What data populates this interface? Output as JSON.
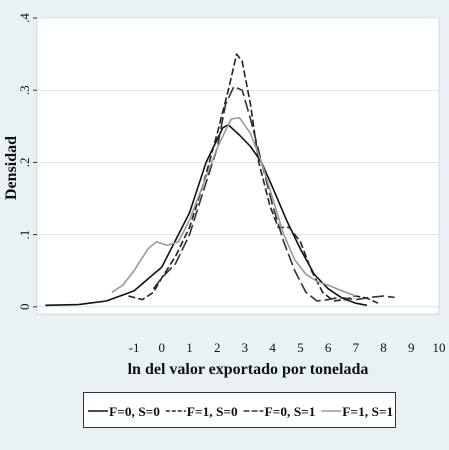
{
  "chart_data": {
    "type": "line",
    "xlabel": "ln del valor exportado por tonelada",
    "ylabel": "Densidad",
    "xlim": [
      -4.5,
      10
    ],
    "ylim": [
      -0.01,
      0.4
    ],
    "x_ticks": [
      "-1",
      "0",
      "1",
      "2",
      "3",
      "4",
      "5",
      "6",
      "7",
      "8",
      "9",
      "10"
    ],
    "y_ticks": [
      "0",
      ".1",
      ".2",
      ".3",
      ".4"
    ],
    "grid": true,
    "legend_position": "bottom",
    "series": [
      {
        "name": "F=0, S=0",
        "style": "solid",
        "color": "#111111",
        "points": [
          [
            -4.2,
            0.002
          ],
          [
            -3,
            0.003
          ],
          [
            -2,
            0.008
          ],
          [
            -1,
            0.022
          ],
          [
            0,
            0.055
          ],
          [
            1,
            0.13
          ],
          [
            1.6,
            0.2
          ],
          [
            2.2,
            0.248
          ],
          [
            2.4,
            0.252
          ],
          [
            2.8,
            0.238
          ],
          [
            3.2,
            0.222
          ],
          [
            3.6,
            0.2
          ],
          [
            4,
            0.165
          ],
          [
            4.5,
            0.12
          ],
          [
            5,
            0.08
          ],
          [
            5.5,
            0.045
          ],
          [
            6,
            0.025
          ],
          [
            6.5,
            0.012
          ],
          [
            7,
            0.005
          ],
          [
            7.4,
            0.002
          ]
        ]
      },
      {
        "name": "F=1, S=0",
        "style": "dashed",
        "color": "#222222",
        "points": [
          [
            -1.2,
            0.015
          ],
          [
            -0.7,
            0.01
          ],
          [
            -0.3,
            0.02
          ],
          [
            0,
            0.04
          ],
          [
            0.5,
            0.07
          ],
          [
            1,
            0.11
          ],
          [
            1.5,
            0.17
          ],
          [
            2,
            0.24
          ],
          [
            2.4,
            0.3
          ],
          [
            2.7,
            0.35
          ],
          [
            2.9,
            0.34
          ],
          [
            3.2,
            0.28
          ],
          [
            3.5,
            0.2
          ],
          [
            3.9,
            0.14
          ],
          [
            4.2,
            0.11
          ],
          [
            4.6,
            0.11
          ],
          [
            5,
            0.09
          ],
          [
            5.4,
            0.05
          ],
          [
            5.8,
            0.02
          ],
          [
            6.2,
            0.008
          ],
          [
            6.6,
            0.01
          ],
          [
            7,
            0.015
          ],
          [
            7.4,
            0.012
          ],
          [
            7.8,
            0.005
          ]
        ]
      },
      {
        "name": "F=0, S=1",
        "style": "longdash",
        "color": "#333333",
        "points": [
          [
            -0.3,
            0.025
          ],
          [
            0,
            0.04
          ],
          [
            0.5,
            0.06
          ],
          [
            1,
            0.1
          ],
          [
            1.5,
            0.16
          ],
          [
            2,
            0.22
          ],
          [
            2.3,
            0.28
          ],
          [
            2.6,
            0.305
          ],
          [
            2.9,
            0.3
          ],
          [
            3.2,
            0.26
          ],
          [
            3.6,
            0.2
          ],
          [
            4,
            0.14
          ],
          [
            4.4,
            0.09
          ],
          [
            4.8,
            0.05
          ],
          [
            5.2,
            0.02
          ],
          [
            5.6,
            0.008
          ],
          [
            6,
            0.01
          ],
          [
            6.4,
            0.013
          ],
          [
            7,
            0.01
          ],
          [
            7.5,
            0.013
          ],
          [
            8,
            0.015
          ],
          [
            8.4,
            0.013
          ]
        ]
      },
      {
        "name": "F=1, S=1",
        "style": "solid",
        "color": "#9a9a9a",
        "points": [
          [
            -1.8,
            0.02
          ],
          [
            -1.4,
            0.03
          ],
          [
            -1,
            0.05
          ],
          [
            -0.5,
            0.08
          ],
          [
            -0.2,
            0.09
          ],
          [
            0.2,
            0.085
          ],
          [
            0.6,
            0.09
          ],
          [
            1,
            0.12
          ],
          [
            1.5,
            0.17
          ],
          [
            2,
            0.22
          ],
          [
            2.5,
            0.26
          ],
          [
            2.8,
            0.262
          ],
          [
            3.2,
            0.24
          ],
          [
            3.6,
            0.2
          ],
          [
            4,
            0.15
          ],
          [
            4.4,
            0.1
          ],
          [
            4.8,
            0.065
          ],
          [
            5.2,
            0.045
          ],
          [
            5.6,
            0.035
          ],
          [
            6,
            0.03
          ],
          [
            6.5,
            0.022
          ],
          [
            7,
            0.015
          ]
        ]
      }
    ]
  }
}
